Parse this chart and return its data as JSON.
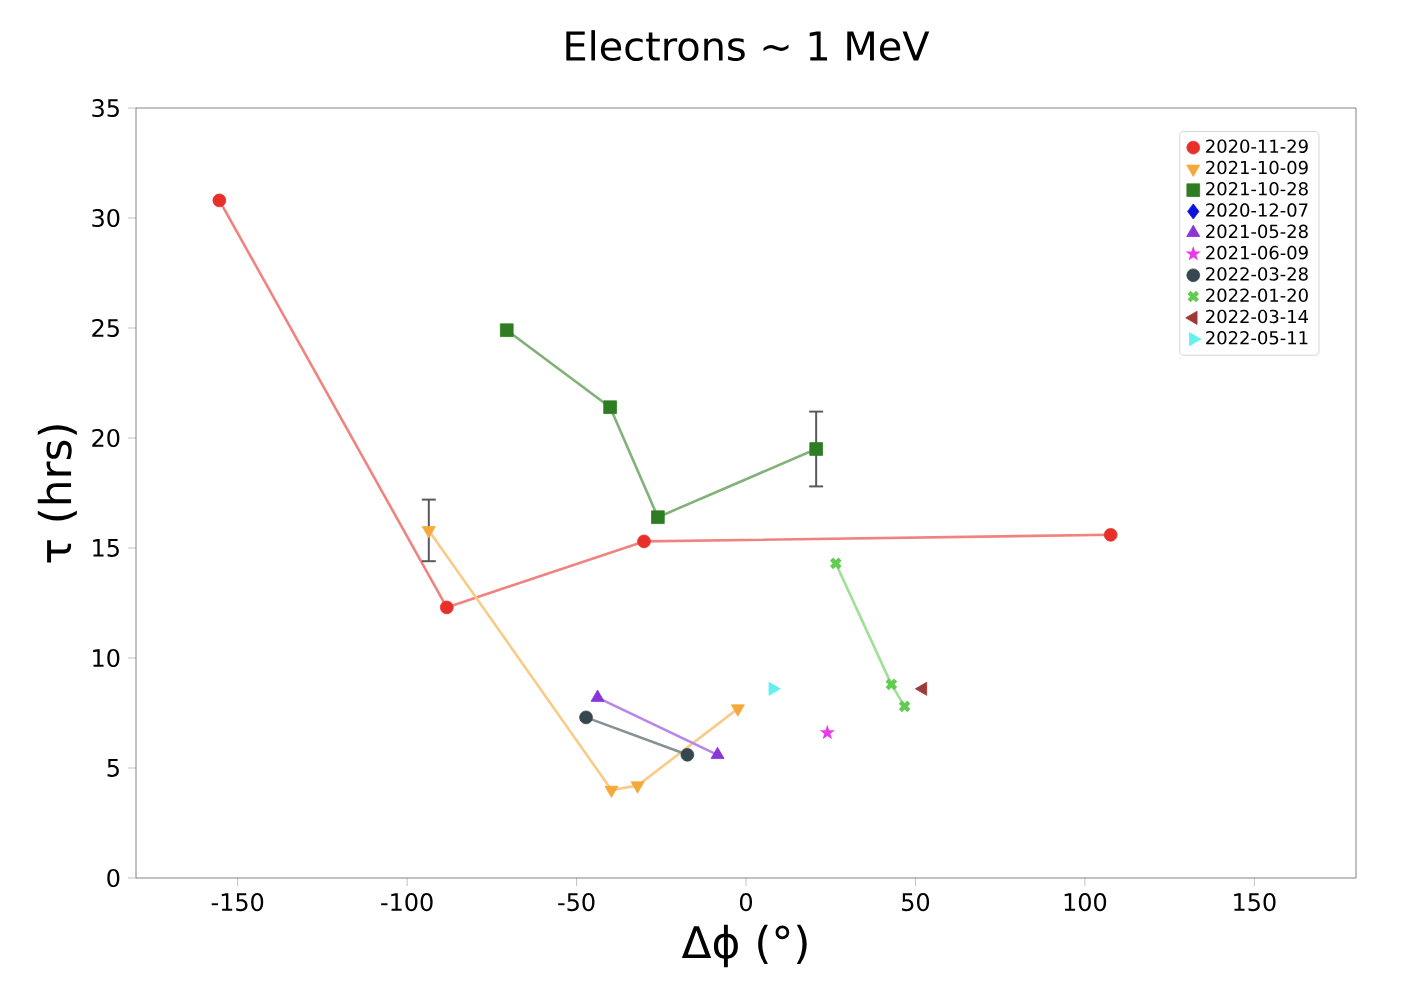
{
  "chart_data": {
    "type": "line",
    "title": "Electrons ∼ 1 MeV",
    "xlabel": "Δϕ (°)",
    "ylabel": "τ (hrs)",
    "xlim": [
      -180,
      180
    ],
    "xticks": [
      -150,
      -100,
      -50,
      0,
      50,
      100,
      150
    ],
    "ylim": [
      0,
      35
    ],
    "yticks": [
      0,
      5,
      10,
      15,
      20,
      25,
      30,
      35
    ],
    "legend": "top right",
    "series": [
      {
        "name": "2020-11-29",
        "color": "#e8302a",
        "marker": "circle",
        "x": [
          -155.4,
          -88.3,
          -30.1,
          107.6
        ],
        "values": [
          30.8,
          12.3,
          15.3,
          15.6
        ]
      },
      {
        "name": "2021-10-09",
        "color": "#f5a93a",
        "marker": "triangle_down",
        "x": [
          -93.6,
          -39.7,
          -32.0,
          -2.4
        ],
        "values": [
          15.8,
          4.0,
          4.2,
          7.7
        ],
        "errors": [
          1.4,
          null,
          null,
          null
        ]
      },
      {
        "name": "2021-10-28",
        "color": "#2e7d22",
        "marker": "square",
        "x": [
          -70.6,
          -40.1,
          -26.0,
          20.7
        ],
        "values": [
          24.9,
          21.4,
          16.4,
          19.5
        ],
        "errors": [
          null,
          null,
          null,
          1.7
        ]
      },
      {
        "name": "2020-12-07",
        "color": "#0a12e0",
        "marker": "diamond"
      },
      {
        "name": "2021-05-28",
        "color": "#8a35d8",
        "marker": "triangle",
        "x": [
          -43.8,
          -8.4
        ],
        "values": [
          8.2,
          5.6
        ]
      },
      {
        "name": "2021-06-09",
        "color": "#e83ae8",
        "marker": "star",
        "x": [
          24.0
        ],
        "values": [
          6.6
        ]
      },
      {
        "name": "2022-03-28",
        "color": "#36474f",
        "marker": "circle",
        "x": [
          -47.2,
          -17.3
        ],
        "values": [
          7.3,
          5.6
        ]
      },
      {
        "name": "2022-01-20",
        "color": "#62cc52",
        "marker": "cross",
        "x": [
          26.5,
          42.9,
          46.8
        ],
        "values": [
          14.3,
          8.8,
          7.8
        ]
      },
      {
        "name": "2022-03-14",
        "color": "#9e3a35",
        "marker": "triangle_left",
        "x": [
          52.2
        ],
        "values": [
          8.6
        ]
      },
      {
        "name": "2022-05-11",
        "color": "#62f0f0",
        "marker": "triangle_right",
        "x": [
          7.9
        ],
        "values": [
          8.6
        ]
      }
    ]
  }
}
